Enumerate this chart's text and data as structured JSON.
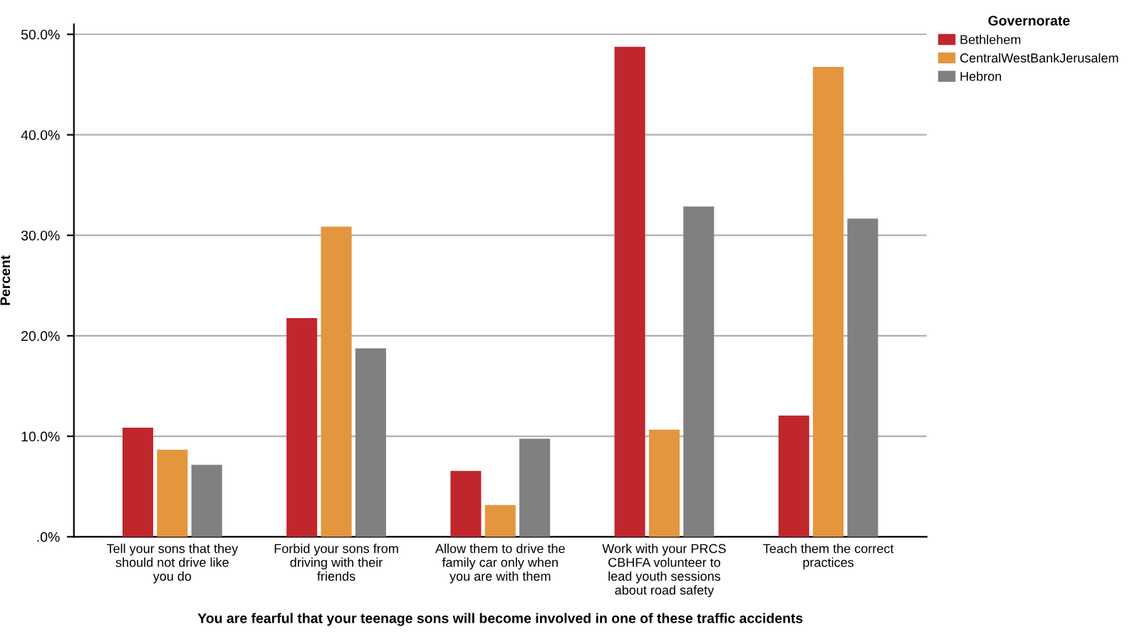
{
  "chart_data": {
    "type": "bar",
    "xlabel": "You are fearful that your teenage sons will become involved in one of these traffic accidents",
    "ylabel": "Percent",
    "legend_title": "Governorate",
    "legend": "top right",
    "grid": "y",
    "categories": [
      "Tell your sons that they\nshould not drive like\nyou do",
      "Forbid your sons from\ndriving with their\nfriends",
      "Allow them to drive the\nfamily car only when\nyou are with them",
      "Work with your PRCS\nCBHFA volunteer to\nlead youth sessions\nabout road safety",
      "Teach them the correct\npractices"
    ],
    "series": [
      {
        "name": "Bethlehem",
        "color": "#c0272d",
        "values": [
          10.8,
          21.7,
          6.5,
          48.7,
          12.0
        ]
      },
      {
        "name": "CentralWestBankJerusalem",
        "color": "#e3963e",
        "values": [
          8.6,
          30.8,
          3.1,
          10.6,
          46.7
        ]
      },
      {
        "name": "Hebron",
        "color": "#808080",
        "values": [
          7.1,
          18.7,
          9.7,
          32.8,
          31.6
        ]
      }
    ],
    "ylim": [
      0,
      51
    ],
    "yticks": [
      {
        "value": 0,
        "label": ".0%"
      },
      {
        "value": 10,
        "label": "10.0%"
      },
      {
        "value": 20,
        "label": "20.0%"
      },
      {
        "value": 30,
        "label": "30.0%"
      },
      {
        "value": 40,
        "label": "40.0%"
      },
      {
        "value": 50,
        "label": "50.0%"
      }
    ]
  }
}
